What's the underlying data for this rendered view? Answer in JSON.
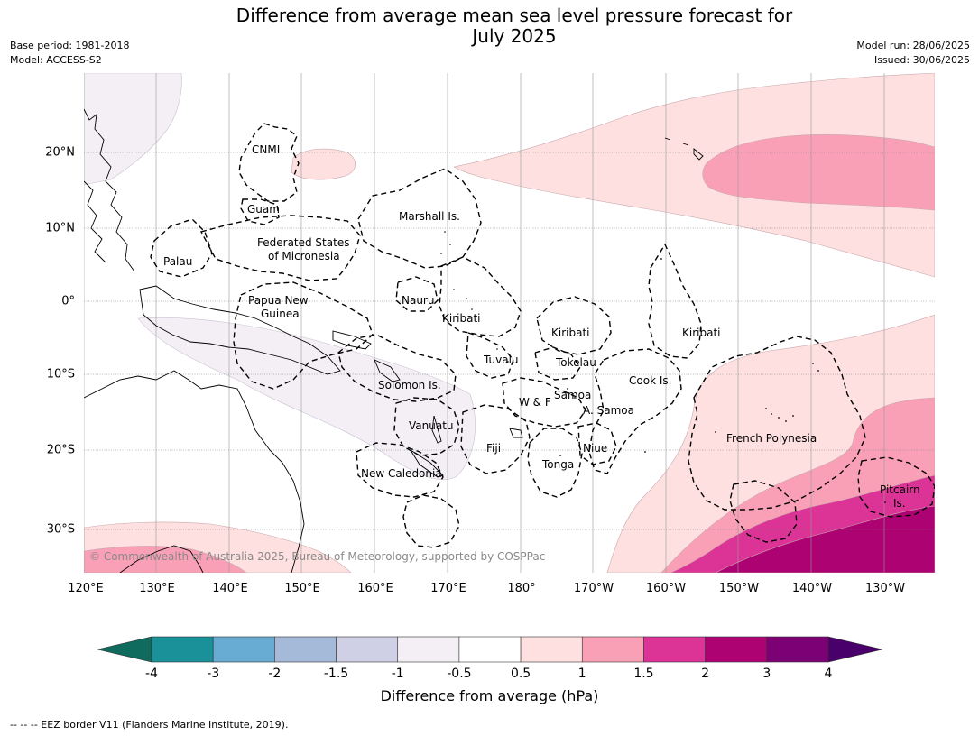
{
  "title_line1": "Difference from average mean sea level pressure forecast for",
  "title_line2": "July 2025",
  "meta_left": [
    "Base period: 1981-2018",
    "Model: ACCESS-S2"
  ],
  "meta_right": [
    "Model run: 28/06/2025",
    "Issued: 30/06/2025"
  ],
  "longitude_labels": [
    "120°E",
    "130°E",
    "140°E",
    "150°E",
    "160°E",
    "170°E",
    "180°",
    "170°W",
    "160°W",
    "150°W",
    "140°W",
    "130°W"
  ],
  "latitude_labels": [
    "20°N",
    "10°N",
    "0°",
    "10°S",
    "20°S",
    "30°S"
  ],
  "place_labels": {
    "cnmi": "CNMI",
    "guam": "Guam",
    "palau": "Palau",
    "fsm_1": "Federated States",
    "fsm_2": "of Micronesia",
    "marshall": "Marshall Is.",
    "png_1": "Papua New",
    "png_2": "Guinea",
    "nauru": "Nauru",
    "kiribati_w": "Kiribati",
    "kiribati_c": "Kiribati",
    "kiribati_e": "Kiribati",
    "tuvalu": "Tuvalu",
    "tokelau": "Tokelau",
    "cook": "Cook Is.",
    "solomon": "Solomon Is.",
    "samoa": "Samoa",
    "wf": "W & F",
    "asamoa": "A. Samoa",
    "vanuatu": "Vanuatu",
    "fiji": "Fiji",
    "niue": "Niue",
    "tonga": "Tonga",
    "newcal": "New Caledonia",
    "frpoly": "French Polynesia",
    "pitcairn_1": "Pitcairn",
    "pitcairn_2": "Is."
  },
  "copyright": "© Commonwealth of Australia 2025, Bureau of Meteorology, supported by COSPPac",
  "colorbar": {
    "title": "Difference from average (hPa)",
    "ticks": [
      "-4",
      "-3",
      "-2",
      "-1.5",
      "-1",
      "-0.5",
      "0.5",
      "1",
      "1.5",
      "2",
      "3",
      "4"
    ],
    "colors": [
      "#0e6b5e",
      "#1a9199",
      "#68abd3",
      "#a5b9d9",
      "#cfd0e6",
      "#f3eff5",
      "#ffffff",
      "#fde0df",
      "#f9a0b6",
      "#db3496",
      "#ad0272",
      "#7b0174",
      "#49006a"
    ]
  },
  "footer": "--  --  -- EEZ border V11 (Flanders Marine Institute, 2019)."
}
